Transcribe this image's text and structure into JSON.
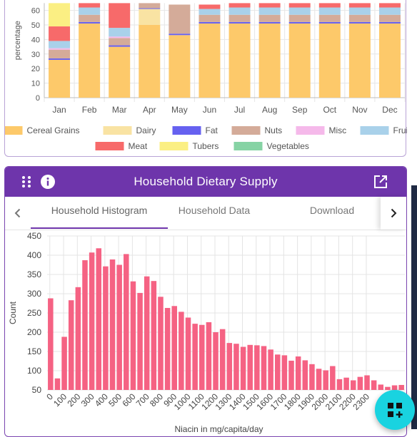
{
  "top_chart": {
    "chart_data": {
      "type": "bar",
      "stacked": true,
      "categories": [
        "Jan",
        "Feb",
        "Mar",
        "Apr",
        "May",
        "Jun",
        "Jul",
        "Aug",
        "Sep",
        "Oct",
        "Nov",
        "Dec"
      ],
      "ylabel": "percentage",
      "ylim": [
        0,
        65
      ],
      "yticks": [
        0,
        10,
        20,
        30,
        40,
        50,
        60
      ],
      "grid": true,
      "legend_position": "bottom",
      "series": [
        {
          "name": "Cereal Grains",
          "color": "#fdc96a",
          "values": [
            26,
            51,
            35,
            50,
            43,
            51,
            51,
            51,
            51,
            51,
            51,
            51
          ]
        },
        {
          "name": "Dairy",
          "color": "#f9e3a3",
          "values": [
            0,
            0,
            0,
            11,
            0,
            0,
            0,
            0,
            0,
            0,
            0,
            0
          ]
        },
        {
          "name": "Fat",
          "color": "#6661f0",
          "values": [
            1,
            1,
            1,
            0.5,
            1,
            1,
            1,
            1,
            1,
            1,
            1,
            1
          ]
        },
        {
          "name": "Nuts",
          "color": "#d4ab99",
          "values": [
            6,
            5,
            5,
            4,
            20,
            5,
            5,
            5,
            5,
            5,
            5,
            5
          ]
        },
        {
          "name": "Misc",
          "color": "#f5b9ea",
          "values": [
            1,
            0,
            1,
            0,
            0,
            0,
            0,
            0,
            0,
            0,
            0,
            0
          ]
        },
        {
          "name": "Fruit",
          "color": "#a9d1ea",
          "values": [
            5,
            5,
            6,
            0,
            0,
            4,
            5,
            5,
            5,
            5,
            5,
            5
          ]
        },
        {
          "name": "Meat",
          "color": "#f76a6a",
          "values": [
            10,
            3,
            20,
            0,
            0,
            3,
            3,
            3,
            3,
            3,
            3,
            3
          ]
        },
        {
          "name": "Tubers",
          "color": "#fbef83",
          "values": [
            17,
            0,
            0,
            0,
            0,
            0,
            0,
            0,
            0,
            0,
            0,
            0
          ]
        },
        {
          "name": "Vegetables",
          "color": "#86d3a4",
          "values": [
            0,
            0,
            0,
            0,
            0,
            0,
            0,
            0,
            0,
            0,
            0,
            0
          ]
        }
      ]
    }
  },
  "card": {
    "title": "Household Dietary Supply",
    "tabs": [
      {
        "label": "Household Histogram",
        "active": true
      },
      {
        "label": "Household Data",
        "active": false
      },
      {
        "label": "Download",
        "active": false
      }
    ]
  },
  "histogram": {
    "chart_data": {
      "type": "bar",
      "xlabel": "Niacin in mg/capita/day",
      "ylabel": "Count",
      "ylim": [
        50,
        450
      ],
      "yticks": [
        50,
        100,
        150,
        200,
        250,
        300,
        350,
        400,
        450
      ],
      "x_tick_labels": [
        "0",
        "100",
        "200",
        "300",
        "400",
        "500",
        "600",
        "700",
        "800",
        "900",
        "1000",
        "1100",
        "1200",
        "1300",
        "1400",
        "1500",
        "1600",
        "1700",
        "1800",
        "1900",
        "2000",
        "2100",
        "2200",
        "2300"
      ],
      "bin_width": 50,
      "color": "#f56283",
      "values": [
        288,
        80,
        188,
        283,
        317,
        387,
        407,
        418,
        371,
        389,
        375,
        403,
        332,
        302,
        345,
        333,
        292,
        263,
        268,
        253,
        238,
        222,
        219,
        226,
        200,
        208,
        172,
        170,
        162,
        167,
        166,
        164,
        155,
        142,
        140,
        126,
        137,
        127,
        117,
        105,
        101,
        112,
        78,
        82,
        75,
        84,
        88,
        75,
        64,
        58,
        62,
        63
      ]
    }
  }
}
